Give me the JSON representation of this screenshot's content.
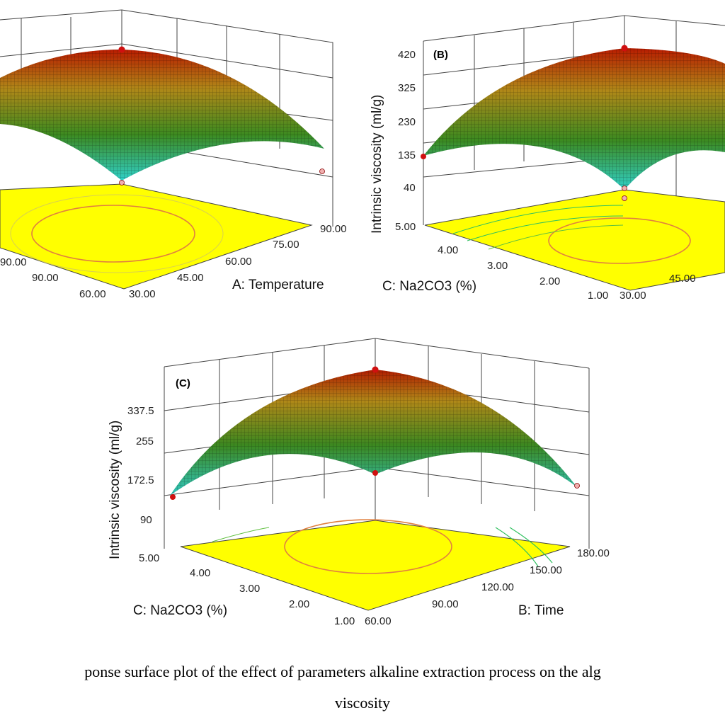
{
  "caption": {
    "line1": "ponse surface plot of the effect of parameters  alkaline  extraction  process on the alg",
    "line2": "viscosity"
  },
  "chart_data": [
    {
      "type": "surface",
      "panel": "A",
      "tag": "",
      "zlabel": "",
      "x_label": "",
      "y_label": "A: Temperature",
      "x_ticks": [
        "90.00",
        "60.00"
      ],
      "y_ticks": [
        "30.00",
        "45.00",
        "60.00",
        "75.00",
        "90.00"
      ],
      "z_ticks": [],
      "surface_colors": [
        "#20c8c0",
        "#4a9a20",
        "#c0a020",
        "#c02000"
      ],
      "contour_fill": "#ffff00"
    },
    {
      "type": "surface",
      "panel": "B",
      "tag": "(B)",
      "zlabel": "Intrinsic viscosity (ml/g)",
      "x_label": "C:   Na2CO3 (%)",
      "y_label": "",
      "x_ticks": [
        "1.00",
        "2.00",
        "3.00",
        "4.00",
        "5.00"
      ],
      "y_ticks": [
        "30.00",
        "45.00"
      ],
      "z_ticks": [
        "40",
        "135",
        "230",
        "325",
        "420"
      ],
      "surface_colors": [
        "#20c8c0",
        "#4a9a20",
        "#c0a020",
        "#c02000"
      ],
      "contour_fill": "#ffff00"
    },
    {
      "type": "surface",
      "panel": "C",
      "tag": "(C)",
      "zlabel": "Intrinsic viscosity (ml/g)",
      "x_label": "C:  Na2CO3 (%)",
      "y_label": "B: Time",
      "x_ticks": [
        "1.00",
        "2.00",
        "3.00",
        "4.00",
        "5.00"
      ],
      "y_ticks": [
        "60.00",
        "90.00",
        "120.00",
        "150.00",
        "180.00"
      ],
      "z_ticks": [
        "90",
        "172.5",
        "255",
        "337.5"
      ],
      "surface_colors": [
        "#20c8c0",
        "#4a9a20",
        "#c0a020",
        "#c02000"
      ],
      "contour_fill": "#ffff00"
    }
  ]
}
